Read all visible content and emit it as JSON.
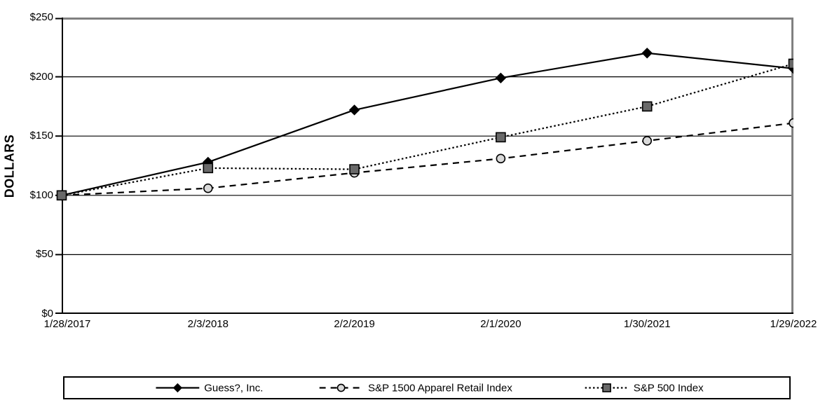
{
  "chart_data": {
    "type": "line",
    "ylabel": "DOLLARS",
    "categories": [
      "1/28/2017",
      "2/3/2018",
      "2/2/2019",
      "2/1/2020",
      "1/30/2021",
      "1/29/2022"
    ],
    "series": [
      {
        "name": "Guess?, Inc.",
        "values": [
          100,
          128,
          172,
          199,
          220,
          207
        ],
        "line_style": "solid",
        "line_color": "#000000",
        "marker": "diamond",
        "marker_fill": "#000000",
        "marker_stroke": "#000000"
      },
      {
        "name": "S&P 1500 Apparel Retail Index",
        "values": [
          100,
          106,
          119,
          131,
          146,
          161
        ],
        "line_style": "dashed",
        "line_color": "#000000",
        "marker": "circle",
        "marker_fill": "#d9d9d9",
        "marker_stroke": "#000000"
      },
      {
        "name": "S&P 500 Index",
        "values": [
          100,
          123,
          122,
          149,
          175,
          211
        ],
        "line_style": "dotted",
        "line_color": "#000000",
        "marker": "square",
        "marker_fill": "#696969",
        "marker_stroke": "#000000"
      }
    ],
    "ylim": [
      0,
      250
    ],
    "ytick_step": 50,
    "ytick_labels": [
      "$0",
      "$50",
      "$100",
      "$150",
      "$200",
      "$250"
    ],
    "grid": true,
    "gridline_color": "#000000",
    "frame_gray_color": "#808080",
    "legend_position": "bottom"
  }
}
